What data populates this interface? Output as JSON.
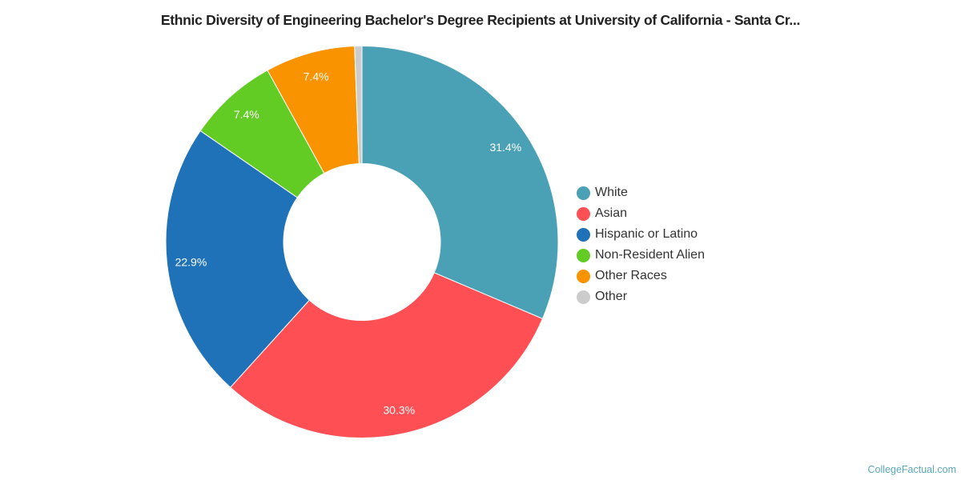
{
  "chart": {
    "title": "Ethnic Diversity of Engineering Bachelor's Degree Recipients at University of California - Santa Cr...",
    "credit": "CollegeFactual.com"
  },
  "legend": {
    "items": [
      {
        "label": "White",
        "color": "#4aa0b5"
      },
      {
        "label": "Asian",
        "color": "#fe5054"
      },
      {
        "label": "Hispanic or Latino",
        "color": "#1f72b8"
      },
      {
        "label": "Non-Resident Alien",
        "color": "#62cc25"
      },
      {
        "label": "Other Races",
        "color": "#f99300"
      },
      {
        "label": "Other",
        "color": "#cccccc"
      }
    ]
  },
  "chart_data": {
    "type": "pie",
    "donut": true,
    "title": "Ethnic Diversity of Engineering Bachelor's Degree Recipients at University of California - Santa Cr...",
    "categories": [
      "White",
      "Asian",
      "Hispanic or Latino",
      "Non-Resident Alien",
      "Other Races",
      "Other"
    ],
    "values": [
      31.4,
      30.3,
      22.9,
      7.4,
      7.4,
      0.6
    ],
    "data_labels": [
      "31.4%",
      "30.3%",
      "22.9%",
      "7.4%",
      "7.4%",
      ""
    ],
    "colors": [
      "#4aa0b5",
      "#fe5054",
      "#1f72b8",
      "#62cc25",
      "#f99300",
      "#cccccc"
    ],
    "unit": "%",
    "legend_position": "right",
    "start_angle": "12 o'clock, clockwise"
  }
}
